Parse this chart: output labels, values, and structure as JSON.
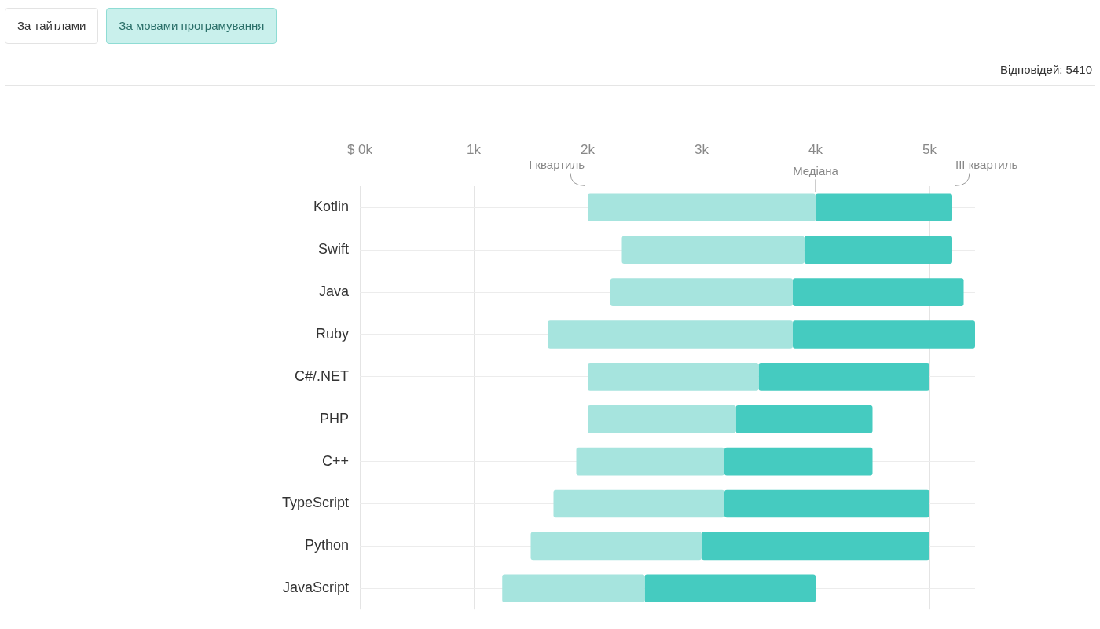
{
  "chart_data": {
    "type": "bar",
    "orientation": "horizontal",
    "categories": [
      "Kotlin",
      "Swift",
      "Java",
      "Ruby",
      "C#/.NET",
      "PHP",
      "C++",
      "TypeScript",
      "Python",
      "JavaScript"
    ],
    "series": [
      {
        "color": "#a6e4de",
        "base": [
          2.0,
          2.3,
          2.2,
          1.65,
          2.0,
          2.0,
          1.9,
          1.7,
          1.5,
          1.25
        ],
        "values": [
          2.0,
          1.6,
          1.6,
          2.15,
          1.5,
          1.3,
          1.3,
          1.5,
          1.5,
          1.25
        ]
      },
      {
        "color": "#45cbc0",
        "base": [
          4.0,
          3.9,
          3.8,
          3.8,
          3.5,
          3.3,
          3.2,
          3.2,
          3.0,
          2.5
        ],
        "values": [
          1.2,
          1.3,
          1.5,
          1.6,
          1.5,
          1.2,
          1.3,
          1.8,
          2.0,
          1.5
        ]
      }
    ],
    "xlim": [
      0,
      5.4
    ],
    "xticks": [
      {
        "value": 0,
        "label": "$ 0k"
      },
      {
        "value": 1,
        "label": "1k"
      },
      {
        "value": 2,
        "label": "2k"
      },
      {
        "value": 3,
        "label": "3k"
      },
      {
        "value": 4,
        "label": "4k"
      },
      {
        "value": 5,
        "label": "5k"
      }
    ],
    "grid": true,
    "legend": false,
    "annotations": [
      "За тайтлами",
      "За мовами програмування",
      "Відповідей: 5410",
      "I квартиль",
      "Медіана",
      "III квартиль"
    ]
  }
}
